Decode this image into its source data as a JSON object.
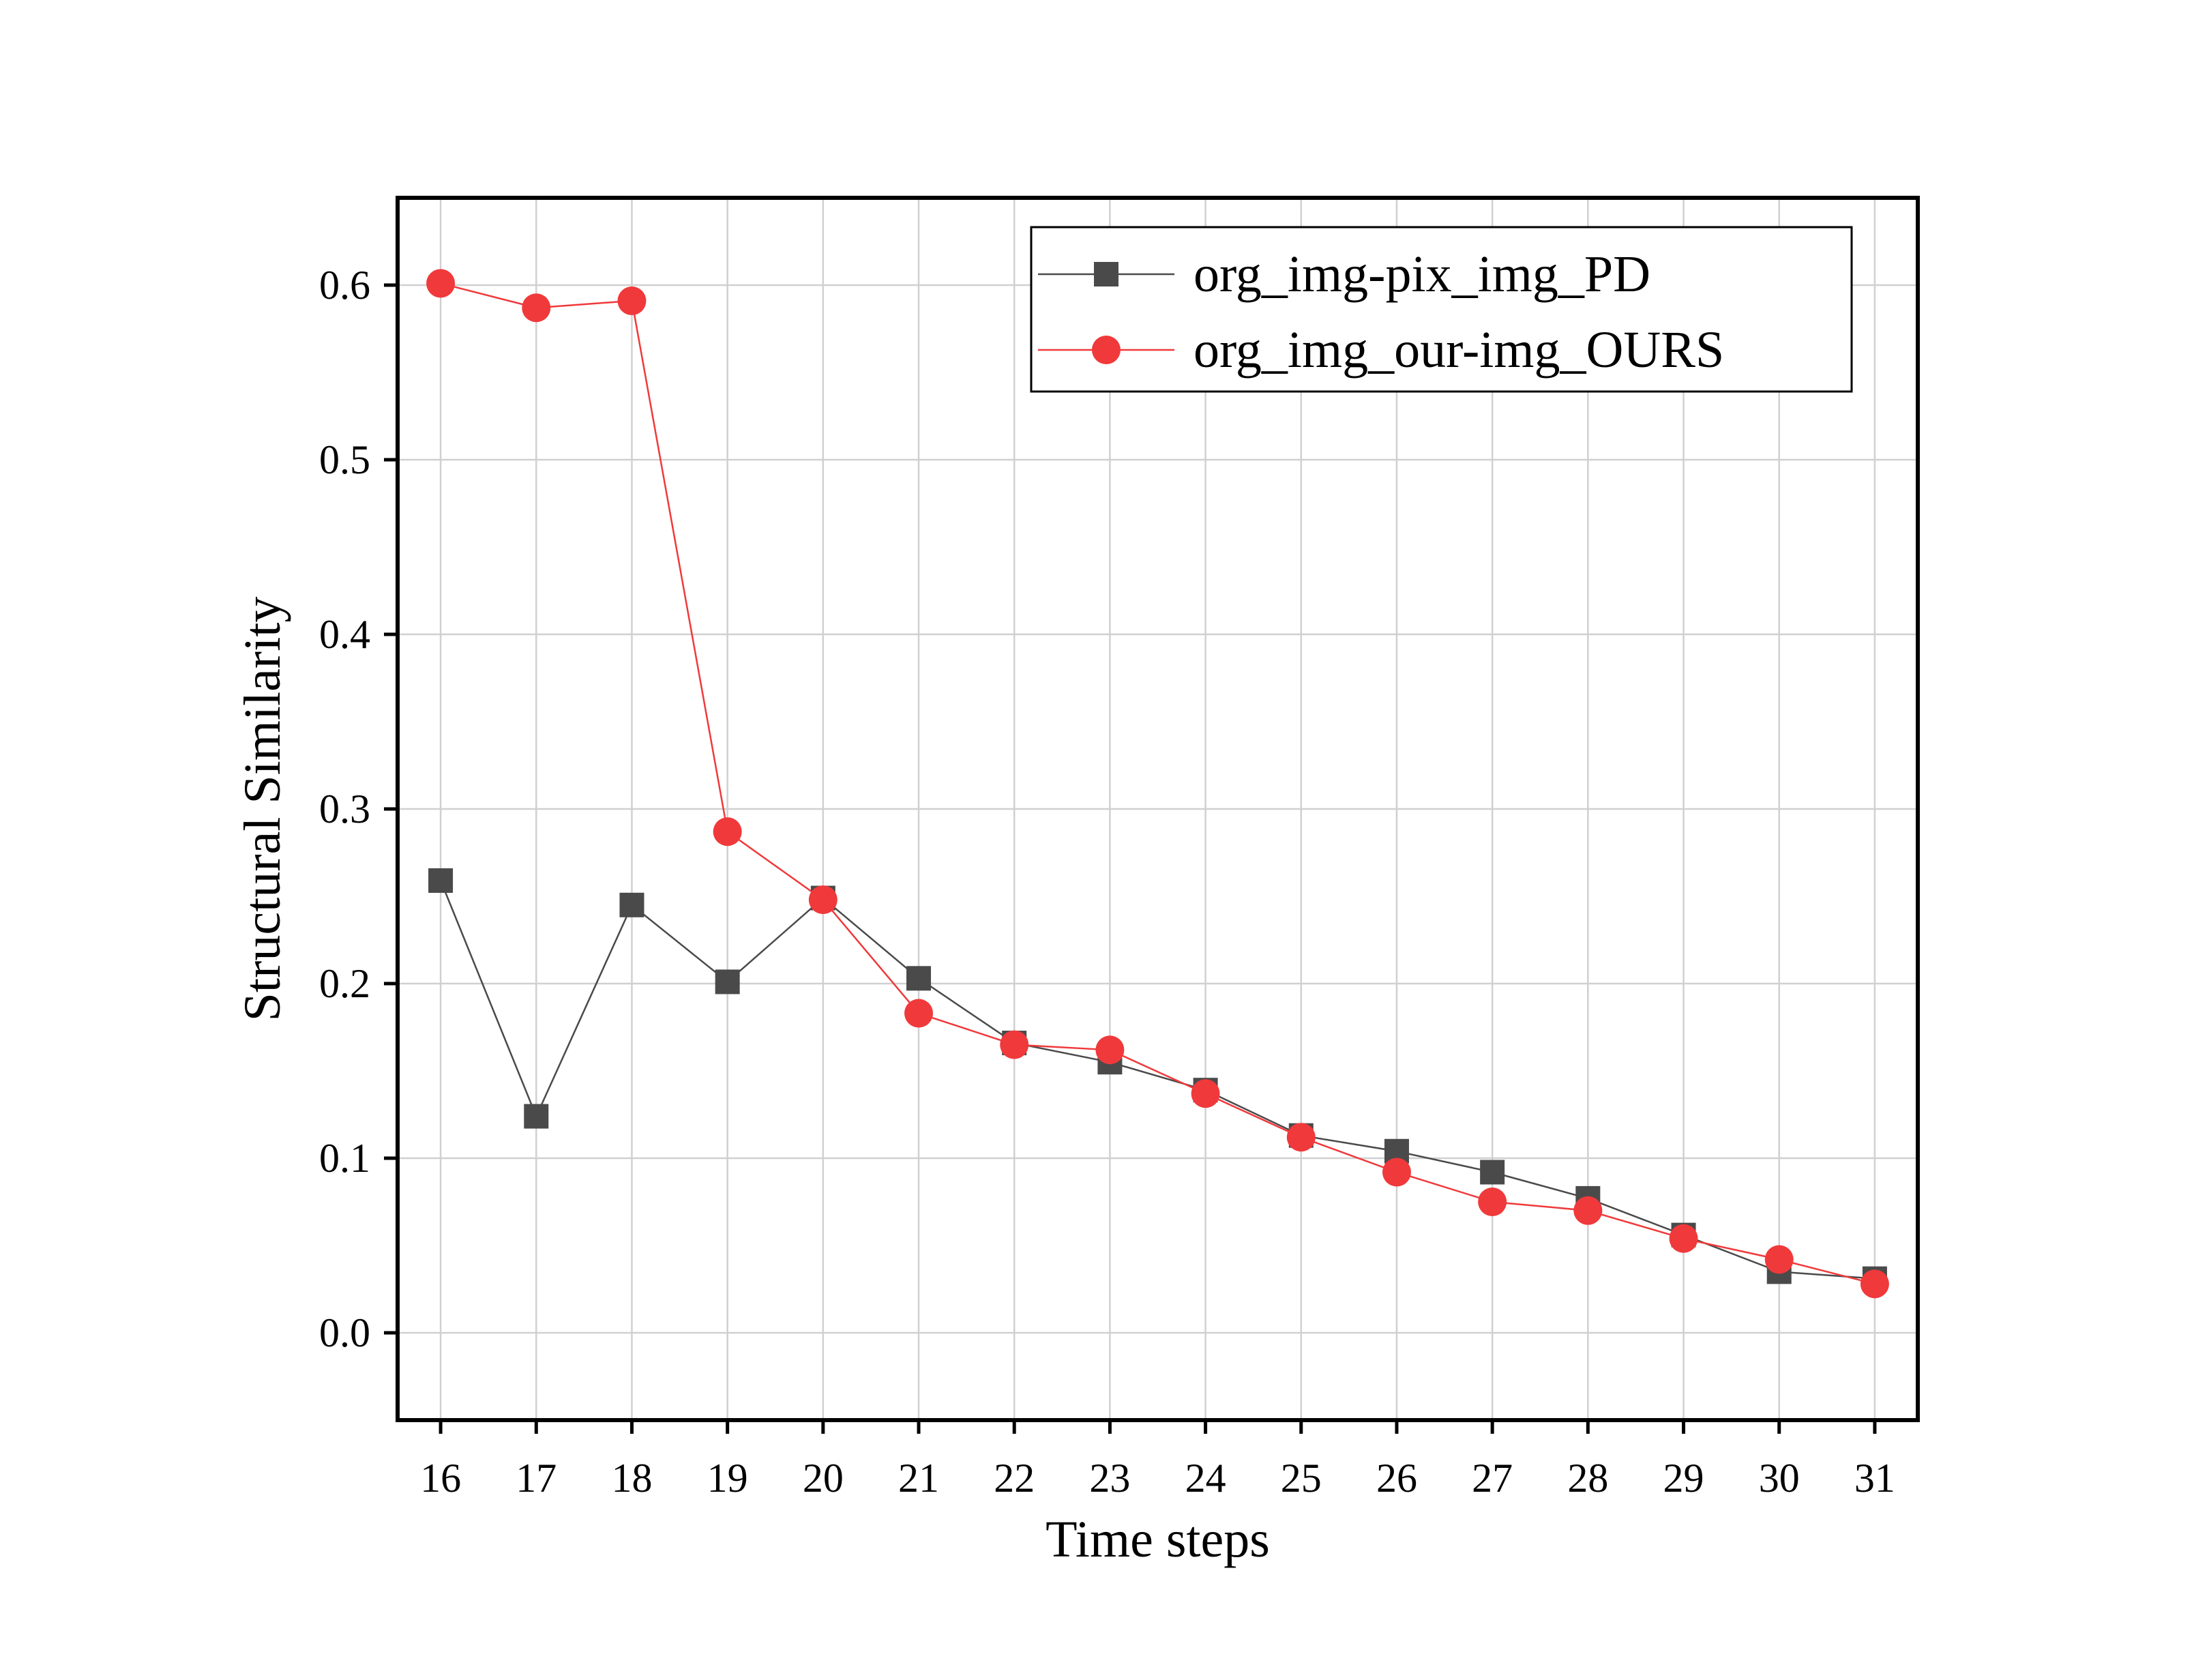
{
  "chart_data": {
    "type": "line",
    "title": "",
    "xlabel": "Time steps",
    "ylabel": "Structural Similarity",
    "x": [
      16,
      17,
      18,
      19,
      20,
      21,
      22,
      23,
      24,
      25,
      26,
      27,
      28,
      29,
      30,
      31
    ],
    "xlim": [
      15.55,
      31.45
    ],
    "ylim": [
      -0.05,
      0.65
    ],
    "yticks": [
      0.0,
      0.1,
      0.2,
      0.3,
      0.4,
      0.5,
      0.6
    ],
    "ytick_labels": [
      "0.0",
      "0.1",
      "0.2",
      "0.3",
      "0.4",
      "0.5",
      "0.6"
    ],
    "xtick_labels": [
      "16",
      "17",
      "18",
      "19",
      "20",
      "21",
      "22",
      "23",
      "24",
      "25",
      "26",
      "27",
      "28",
      "29",
      "30",
      "31"
    ],
    "grid": true,
    "legend_position": "top-right",
    "series": [
      {
        "name": "org_img-pix_img_PD",
        "marker": "square",
        "color": "#4a4a4a",
        "values": [
          0.259,
          0.124,
          0.245,
          0.201,
          0.249,
          0.203,
          0.166,
          0.155,
          0.139,
          0.113,
          0.104,
          0.092,
          0.077,
          0.056,
          0.035,
          0.031
        ]
      },
      {
        "name": "org_img_our-img_OURS",
        "marker": "circle",
        "color": "#f0393b",
        "values": [
          0.601,
          0.587,
          0.591,
          0.287,
          0.248,
          0.183,
          0.165,
          0.162,
          0.137,
          0.112,
          0.092,
          0.075,
          0.07,
          0.054,
          0.042,
          0.028
        ]
      }
    ]
  }
}
